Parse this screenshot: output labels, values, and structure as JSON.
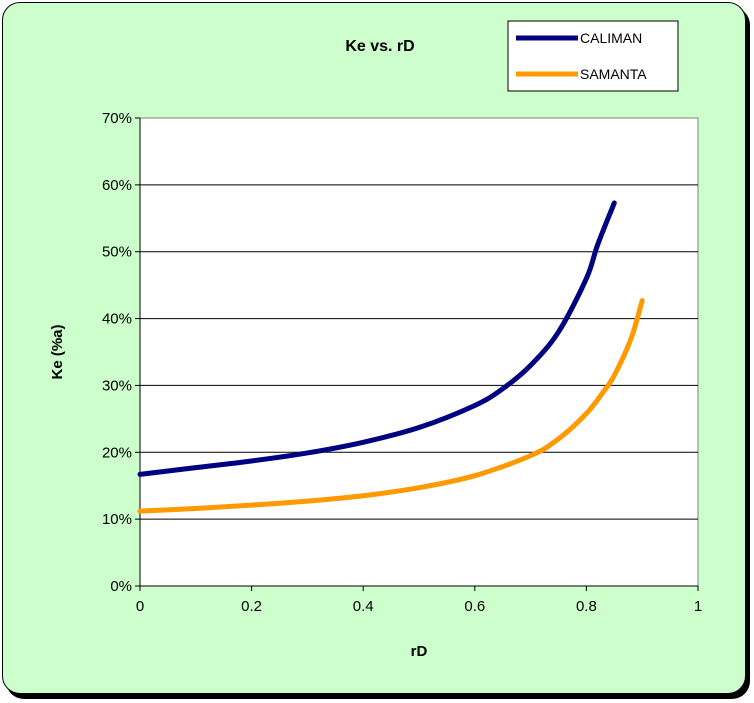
{
  "chart_data": {
    "type": "line",
    "title": "Ke vs. rD",
    "xlabel": "rD",
    "ylabel": "Ke (%a)",
    "xlim": [
      0,
      1
    ],
    "ylim": [
      0,
      0.7
    ],
    "x_ticks": [
      "0",
      "0.2",
      "0.4",
      "0.6",
      "0.8",
      "1"
    ],
    "y_ticks": [
      "0%",
      "10%",
      "20%",
      "30%",
      "40%",
      "50%",
      "60%",
      "70%"
    ],
    "grid": "horizontal",
    "legend_position": "top-right",
    "series": [
      {
        "name": "CALIMAN",
        "color": "#000080",
        "x": [
          0,
          0.1,
          0.2,
          0.3,
          0.4,
          0.5,
          0.6,
          0.65,
          0.7,
          0.75,
          0.8,
          0.82,
          0.85
        ],
        "y": [
          0.167,
          0.177,
          0.187,
          0.199,
          0.215,
          0.237,
          0.27,
          0.295,
          0.33,
          0.38,
          0.46,
          0.51,
          0.573
        ]
      },
      {
        "name": "SAMANTA",
        "color": "#ff9900",
        "x": [
          0,
          0.1,
          0.2,
          0.3,
          0.4,
          0.5,
          0.6,
          0.7,
          0.75,
          0.8,
          0.83,
          0.85,
          0.88,
          0.9
        ],
        "y": [
          0.112,
          0.116,
          0.121,
          0.127,
          0.135,
          0.147,
          0.165,
          0.195,
          0.22,
          0.258,
          0.29,
          0.315,
          0.37,
          0.427
        ]
      }
    ]
  }
}
